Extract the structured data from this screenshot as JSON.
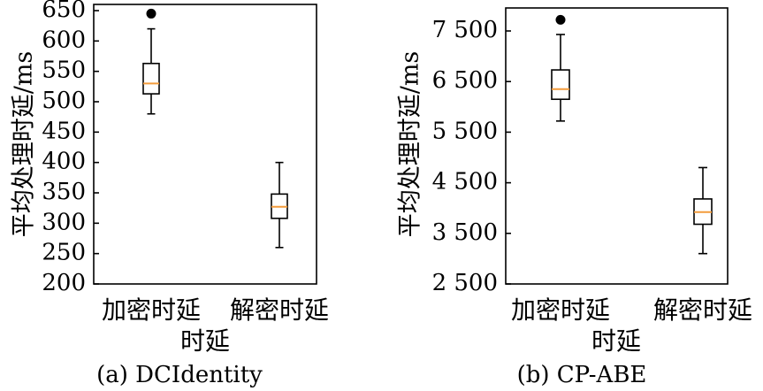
{
  "chart_data": [
    {
      "type": "box",
      "caption": "(a) DCIdentity",
      "ylabel": "平均处理时延/ms",
      "xlabel": "时延",
      "ylim": [
        200,
        650
      ],
      "yticks": [
        200,
        250,
        300,
        350,
        400,
        450,
        500,
        550,
        600,
        650
      ],
      "ytick_labels": [
        "200",
        "250",
        "300",
        "350",
        "400",
        "450",
        "500",
        "550",
        "600",
        "650"
      ],
      "categories": [
        "加密时延",
        "解密时延"
      ],
      "boxes": [
        {
          "whisker_low": 480,
          "q1": 513,
          "median": 530,
          "q3": 563,
          "whisker_high": 620,
          "outliers": [
            645
          ]
        },
        {
          "whisker_low": 260,
          "q1": 308,
          "median": 327,
          "q3": 348,
          "whisker_high": 400,
          "outliers": []
        }
      ],
      "median_color": "#f39c3c"
    },
    {
      "type": "box",
      "caption": "(b) CP-ABE",
      "ylabel": "平均处理时延/ms",
      "xlabel": "时延",
      "ylim": [
        2500,
        7900
      ],
      "yticks": [
        2500,
        3500,
        4500,
        5500,
        6500,
        7500
      ],
      "ytick_labels": [
        "2 500",
        "3 500",
        "4 500",
        "5 500",
        "6 500",
        "7 500"
      ],
      "categories": [
        "加密时延",
        "解密时延"
      ],
      "boxes": [
        {
          "whisker_low": 5720,
          "q1": 6150,
          "median": 6350,
          "q3": 6730,
          "whisker_high": 7430,
          "outliers": [
            7720
          ]
        },
        {
          "whisker_low": 3100,
          "q1": 3680,
          "median": 3920,
          "q3": 4180,
          "whisker_high": 4800,
          "outliers": []
        }
      ],
      "median_color": "#f39c3c"
    }
  ]
}
